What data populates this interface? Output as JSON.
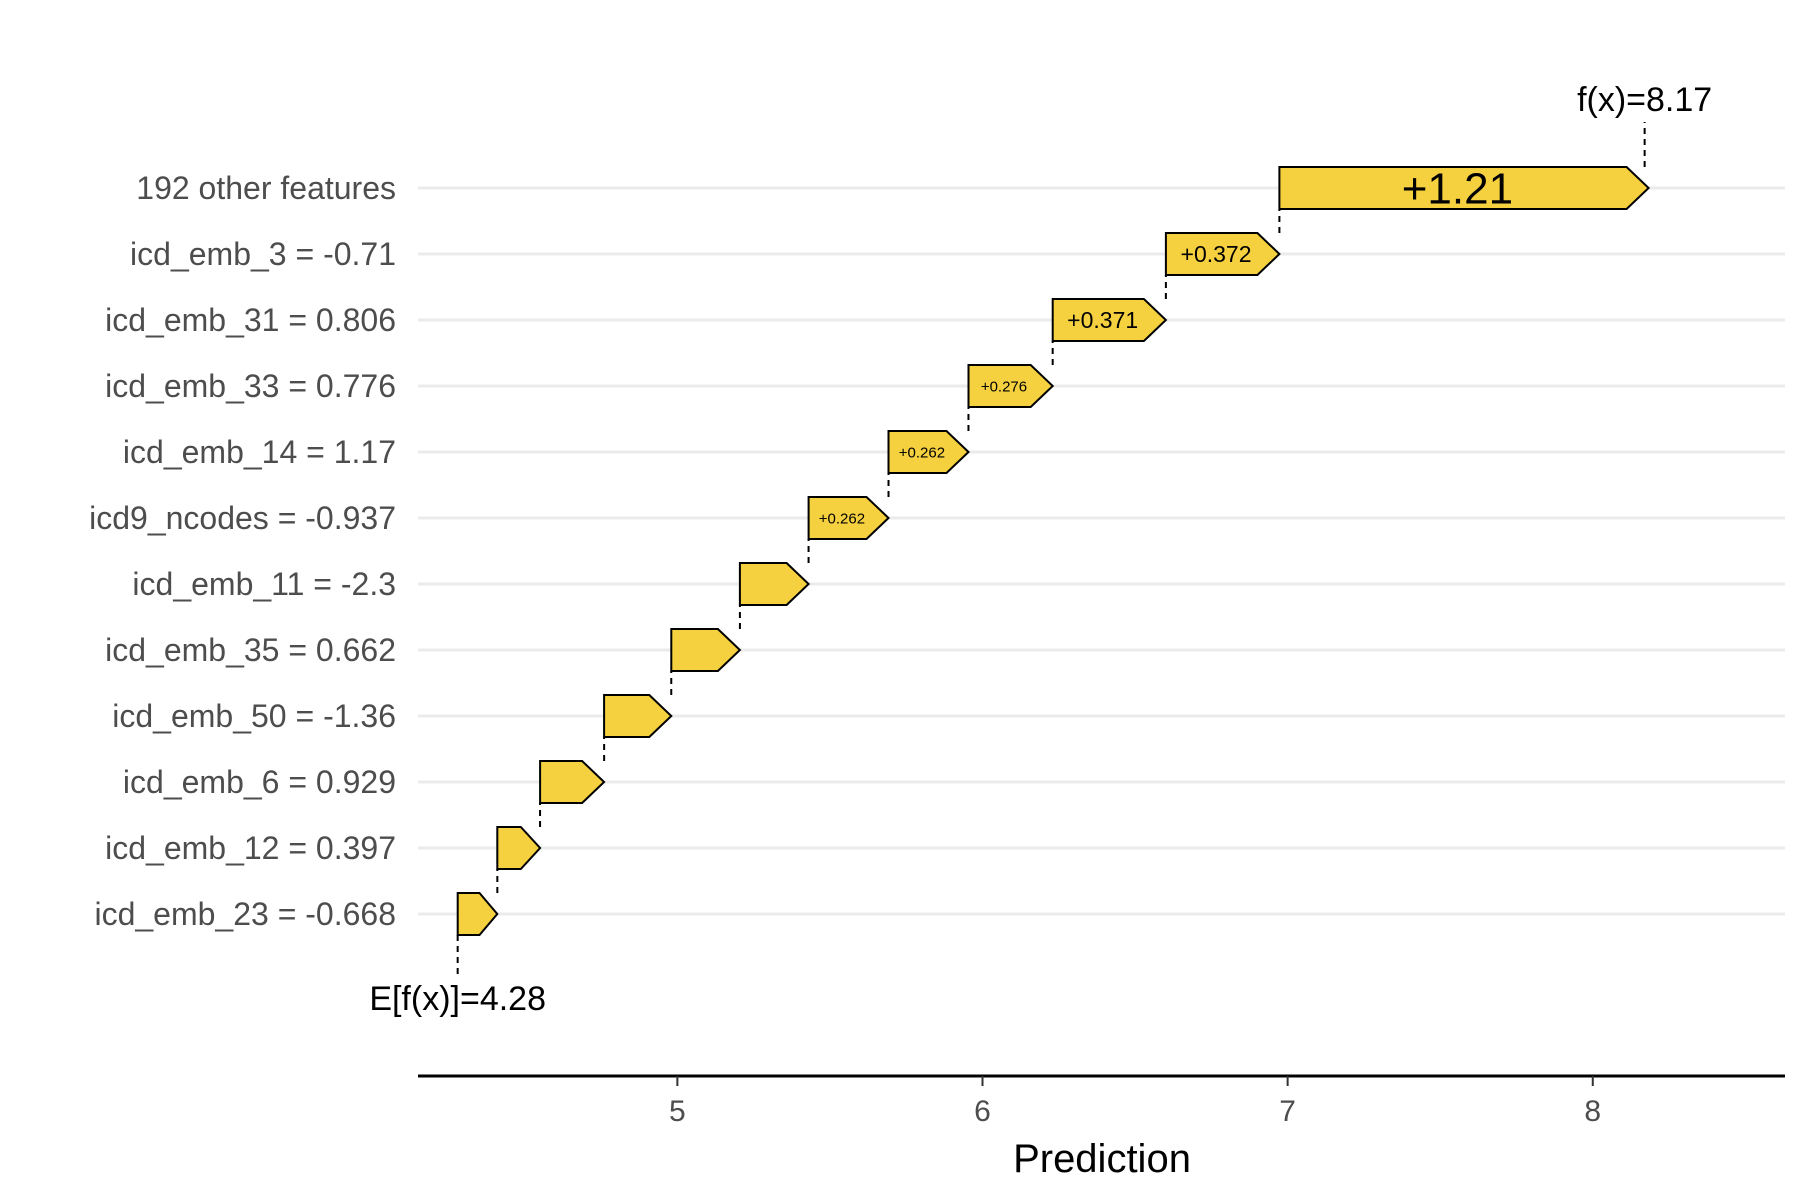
{
  "chart_data": {
    "type": "waterfall",
    "xlabel": "Prediction",
    "base_value": 4.28,
    "base_label": "E[f(x)]=4.28",
    "final_value": 8.17,
    "final_label": "f(x)=8.17",
    "xlim": [
      4.15,
      8.63
    ],
    "xticks": [
      5,
      6,
      7,
      8
    ],
    "bar_color": "#f6d13f",
    "features": [
      {
        "label": "192 other features",
        "value": 1.21,
        "value_label": "+1.21"
      },
      {
        "label": "icd_emb_3 = -0.71",
        "value": 0.372,
        "value_label": "+0.372"
      },
      {
        "label": "icd_emb_31 = 0.806",
        "value": 0.371,
        "value_label": "+0.371"
      },
      {
        "label": "icd_emb_33 = 0.776",
        "value": 0.276,
        "value_label": "+0.276"
      },
      {
        "label": "icd_emb_14 = 1.17",
        "value": 0.262,
        "value_label": "+0.262"
      },
      {
        "label": "icd9_ncodes = -0.937",
        "value": 0.262,
        "value_label": "+0.262"
      },
      {
        "label": "icd_emb_11 = -2.3",
        "value": 0.225,
        "value_label": ""
      },
      {
        "label": "icd_emb_35 = 0.662",
        "value": 0.225,
        "value_label": ""
      },
      {
        "label": "icd_emb_50 = -1.36",
        "value": 0.22,
        "value_label": ""
      },
      {
        "label": "icd_emb_6 = 0.929",
        "value": 0.21,
        "value_label": ""
      },
      {
        "label": "icd_emb_12 = 0.397",
        "value": 0.14,
        "value_label": ""
      },
      {
        "label": "icd_emb_23 = -0.668",
        "value": 0.13,
        "value_label": ""
      }
    ]
  }
}
